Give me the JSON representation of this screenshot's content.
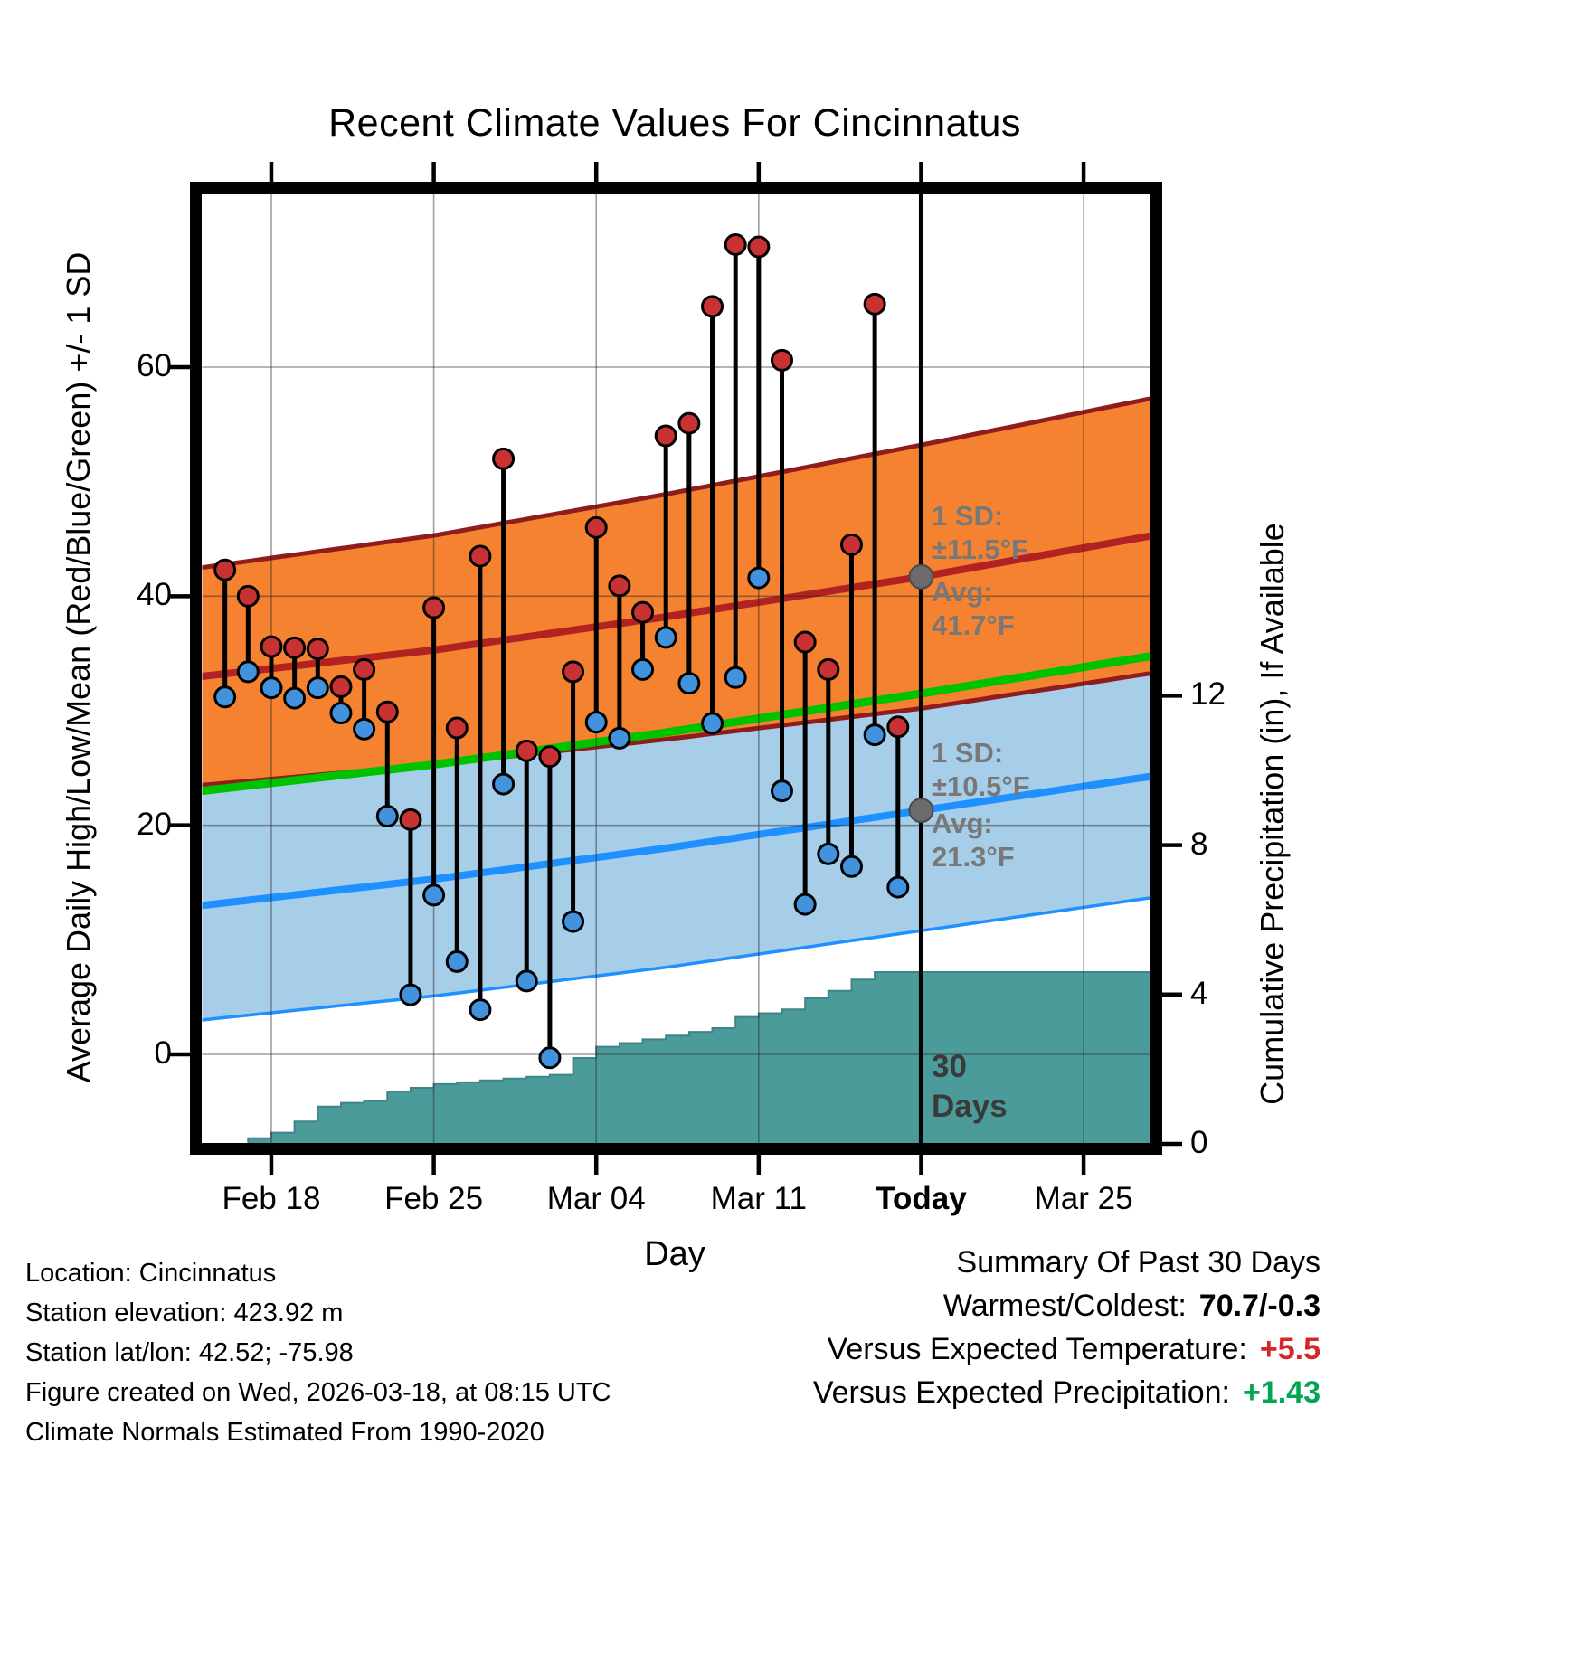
{
  "title": "Recent Climate Values For Cincinnatus",
  "axes": {
    "x_label": "Day",
    "x_ticks": [
      {
        "label": "Feb 18",
        "day": 3,
        "bold": false
      },
      {
        "label": "Feb 25",
        "day": 10,
        "bold": false
      },
      {
        "label": "Mar 04",
        "day": 17,
        "bold": false
      },
      {
        "label": "Mar 11",
        "day": 24,
        "bold": false
      },
      {
        "label": "Today",
        "day": 31,
        "bold": true
      },
      {
        "label": "Mar 25",
        "day": 38,
        "bold": false
      }
    ],
    "y_left_label": "Average Daily High/Low/Mean (Red/Blue/Green) +/- 1 SD",
    "y_left_ticks": [
      {
        "label": "0",
        "value": 0
      },
      {
        "label": "20",
        "value": 20
      },
      {
        "label": "40",
        "value": 40
      },
      {
        "label": "60",
        "value": 60
      }
    ],
    "y_right_label": "Cumulative Precipitation (in), If Available",
    "y_right_ticks": [
      {
        "label": "0",
        "value": 0
      },
      {
        "label": "4",
        "value": 4
      },
      {
        "label": "8",
        "value": 8
      },
      {
        "label": "12",
        "value": 12
      }
    ]
  },
  "annotations": {
    "high": {
      "sd_label": "1 SD:",
      "sd_value": "±11.5°F",
      "avg_label": "Avg:",
      "avg_value": "41.7°F",
      "avg_temp": 41.7
    },
    "low": {
      "sd_label": "1 SD:",
      "sd_value": "±10.5°F",
      "avg_label": "Avg:",
      "avg_value": "21.3°F",
      "avg_temp": 21.3
    },
    "today_label_1": "30",
    "today_label_2": "Days",
    "today_day": 31
  },
  "footer": {
    "location": "Location: Cincinnatus",
    "elevation": "Station elevation: 423.92 m",
    "latlon": "Station lat/lon: 42.52; -75.98",
    "created": "Figure created on Wed, 2026-03-18, at 08:15 UTC",
    "normals": "Climate Normals Estimated From 1990-2020"
  },
  "summary": {
    "title": "Summary Of Past 30 Days",
    "warmest_label": "Warmest/Coldest:",
    "warmest_value": "70.7/-0.3",
    "temp_label": "Versus Expected Temperature:",
    "temp_value": "+5.5",
    "precip_label": "Versus Expected Precipitation:",
    "precip_value": "+1.43"
  },
  "colors": {
    "accent_red": "#D62728",
    "accent_green": "#00A651",
    "band_orange": "#F58231",
    "band_blue": "#A6CEE9",
    "line_high": "#B22222",
    "line_low": "#1E90FF",
    "line_mean": "#00C300",
    "band_edge_dark_red": "#8F1D1D",
    "precip_teal": "#4C9B9B",
    "precip_edge": "#3E8488",
    "dot_high": "#C93232",
    "dot_low": "#4292DE",
    "stem_black": "#000000",
    "annotation_gray": "#787878",
    "marker_gray": "#6B6B6B",
    "grid": "#555555"
  },
  "chart_data": [
    {
      "type": "scatter",
      "name": "daily-high-low",
      "description": "Daily observed high (red dot) and low (blue dot) joined by a black stem",
      "x_start_day": 1,
      "dates": [
        "Feb 16",
        "Feb 17",
        "Feb 18",
        "Feb 19",
        "Feb 20",
        "Feb 21",
        "Feb 22",
        "Feb 23",
        "Feb 24",
        "Feb 25",
        "Feb 26",
        "Feb 27",
        "Feb 28",
        "Mar 01",
        "Mar 02",
        "Mar 03",
        "Mar 04",
        "Mar 05",
        "Mar 06",
        "Mar 07",
        "Mar 08",
        "Mar 09",
        "Mar 10",
        "Mar 11",
        "Mar 12",
        "Mar 13",
        "Mar 14",
        "Mar 15",
        "Mar 16",
        "Mar 17"
      ],
      "highs": [
        42.3,
        40.0,
        35.6,
        35.5,
        35.4,
        32.1,
        33.6,
        29.9,
        20.5,
        39.0,
        28.5,
        43.5,
        52.0,
        26.5,
        26.0,
        33.4,
        46.0,
        40.9,
        38.6,
        54.0,
        55.1,
        65.3,
        70.7,
        70.5,
        60.6,
        36.0,
        33.6,
        44.5,
        65.5,
        28.6
      ],
      "lows": [
        31.2,
        33.4,
        32.0,
        31.1,
        32.0,
        29.8,
        28.4,
        20.8,
        5.2,
        13.9,
        8.1,
        3.9,
        23.6,
        6.4,
        -0.3,
        11.6,
        29.0,
        27.6,
        33.6,
        36.4,
        32.4,
        28.9,
        32.9,
        41.6,
        23.0,
        13.1,
        17.5,
        16.4,
        27.9,
        14.6
      ],
      "xlabel": "Day",
      "ylabel": "Average Daily High/Low/Mean (Red/Blue/Green) +/- 1 SD",
      "ylim": [
        -8,
        75
      ]
    },
    {
      "type": "area",
      "name": "climatology-bands",
      "description": "Climatological normal high/low bands (avg +/- 1 SD) and mean line; days offset from Feb 15",
      "days": [
        0,
        10,
        20,
        31,
        41
      ],
      "high_avg": [
        33.0,
        35.3,
        38.2,
        41.7,
        45.3
      ],
      "high_sd": [
        9.5,
        10.0,
        10.7,
        11.5,
        12.0
      ],
      "low_avg": [
        13.0,
        15.3,
        18.0,
        21.3,
        24.3
      ],
      "low_sd": [
        10.0,
        10.2,
        10.4,
        10.5,
        10.6
      ],
      "mean_avg": [
        23.0,
        25.3,
        28.1,
        31.5,
        34.8
      ]
    },
    {
      "type": "area",
      "name": "cumulative-precipitation",
      "description": "Cumulative precipitation (in), stepped area on right axis; days offset from Feb 15",
      "days": [
        1,
        2,
        3,
        4,
        5,
        6,
        7,
        8,
        9,
        10,
        11,
        12,
        13,
        14,
        15,
        16,
        17,
        18,
        19,
        20,
        21,
        22,
        23,
        24,
        25,
        26,
        27,
        28,
        29,
        30,
        41
      ],
      "values": [
        0,
        0.15,
        0.3,
        0.6,
        1.0,
        1.1,
        1.15,
        1.4,
        1.5,
        1.6,
        1.65,
        1.7,
        1.75,
        1.8,
        1.85,
        2.3,
        2.6,
        2.7,
        2.8,
        2.9,
        3.0,
        3.1,
        3.4,
        3.5,
        3.6,
        3.9,
        4.1,
        4.4,
        4.6,
        4.6,
        4.6
      ],
      "ylabel": "Cumulative Precipitation (in)",
      "axis_ticks": [
        0,
        4,
        8,
        12
      ]
    }
  ]
}
